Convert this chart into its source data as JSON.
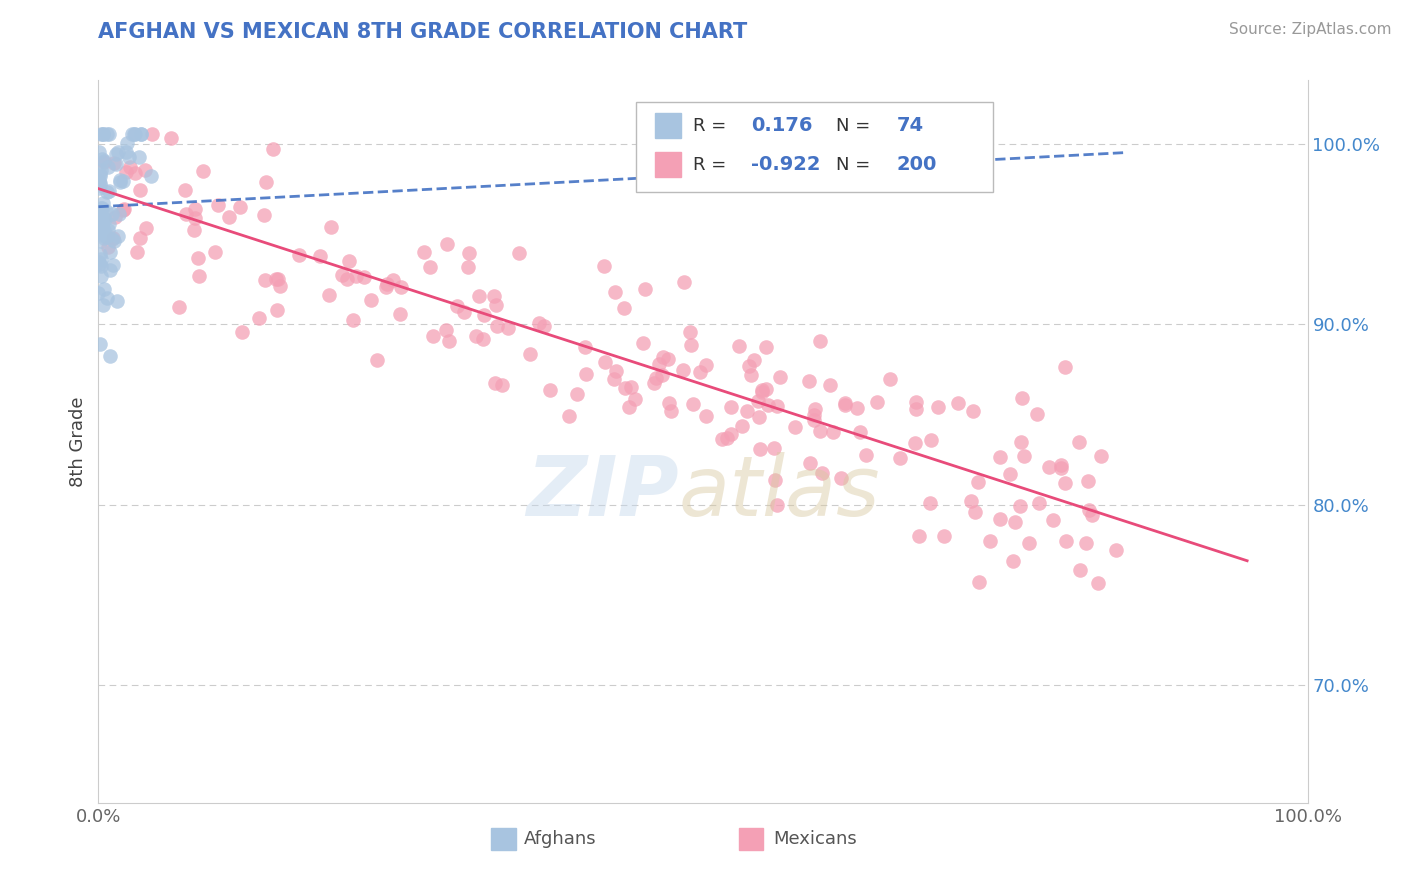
{
  "title": "AFGHAN VS MEXICAN 8TH GRADE CORRELATION CHART",
  "source": "Source: ZipAtlas.com",
  "ylabel": "8th Grade",
  "xlim": [
    0.0,
    1.0
  ],
  "ylim": [
    0.635,
    1.035
  ],
  "x_ticks": [
    0.0,
    1.0
  ],
  "x_tick_labels": [
    "0.0%",
    "100.0%"
  ],
  "y_ticks_right": [
    0.7,
    0.8,
    0.9,
    1.0
  ],
  "y_tick_labels_right": [
    "70.0%",
    "80.0%",
    "90.0%",
    "100.0%"
  ],
  "afghan_R": 0.176,
  "afghan_N": 74,
  "mexican_R": -0.922,
  "mexican_N": 200,
  "afghan_color": "#a8c4e0",
  "mexican_color": "#f4a0b5",
  "afghan_line_color": "#4472c4",
  "mexican_line_color": "#e84b7a",
  "background_color": "#ffffff",
  "grid_color": "#cccccc",
  "title_color": "#4472c4",
  "source_color": "#999999",
  "legend_value_color": "#4472c4",
  "seed": 42,
  "af_line_x0": 0.0,
  "af_line_x1": 0.85,
  "af_line_y0": 0.965,
  "af_line_y1": 0.995,
  "mx_line_x0": 0.0,
  "mx_line_x1": 0.95,
  "mx_line_y0": 0.975,
  "mx_line_y1": 0.769
}
